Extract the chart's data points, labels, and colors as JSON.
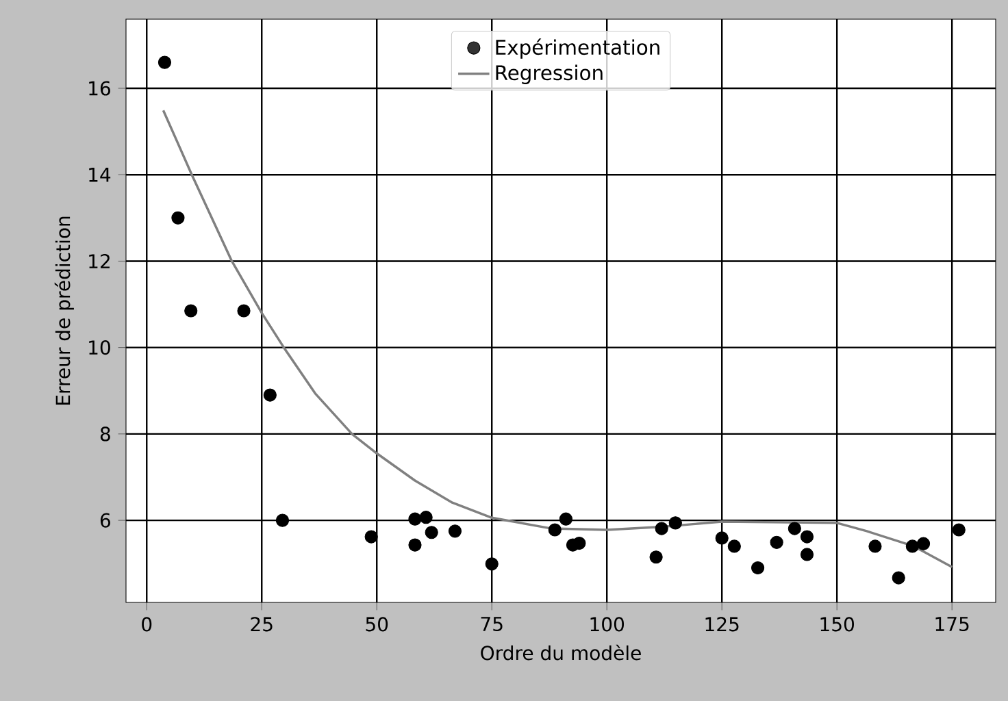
{
  "chart_data": {
    "type": "scatter",
    "xlabel": "Ordre du modèle",
    "ylabel": "Erreur de prédiction",
    "xlim": [
      -4.5,
      184.5
    ],
    "ylim": [
      4.1,
      17.6
    ],
    "xticks": [
      0,
      25,
      50,
      75,
      100,
      125,
      150,
      175
    ],
    "yticks": [
      6,
      8,
      10,
      12,
      14,
      16
    ],
    "grid": true,
    "legend": "top",
    "series": [
      {
        "name": "Expérimentation",
        "color": "#000000",
        "marker": "circle",
        "x": [
          3.9,
          6.8,
          9.6,
          21.1,
          26.8,
          29.5,
          48.8,
          58.3,
          60.7,
          58.3,
          61.9,
          67.0,
          75.0,
          88.7,
          91.1,
          92.6,
          94.0,
          110.7,
          111.9,
          114.9,
          125.0,
          127.7,
          132.8,
          136.9,
          140.8,
          143.5,
          143.5,
          158.3,
          163.4,
          166.4,
          168.8,
          176.5
        ],
        "values": [
          16.6,
          13.0,
          10.85,
          10.85,
          8.9,
          6.0,
          5.62,
          6.03,
          6.07,
          5.43,
          5.72,
          5.75,
          4.99,
          5.78,
          6.03,
          5.43,
          5.47,
          5.15,
          5.81,
          5.94,
          5.59,
          5.4,
          4.9,
          5.49,
          5.81,
          5.62,
          5.21,
          5.4,
          4.67,
          5.4,
          5.46,
          5.78
        ]
      },
      {
        "name": "Regression",
        "type": "line",
        "color": "#808080",
        "marker": "none",
        "line_style": "solid",
        "x": [
          3.6,
          9.8,
          18.5,
          25,
          29.8,
          36.6,
          44.6,
          50,
          58.3,
          66.4,
          75,
          88,
          100,
          112,
          125,
          150,
          156.5,
          166.7,
          175
        ],
        "values": [
          15.49,
          14.0,
          12.0,
          10.8,
          10.0,
          8.94,
          8.0,
          7.55,
          6.92,
          6.41,
          6.06,
          5.81,
          5.78,
          5.85,
          5.97,
          5.94,
          5.75,
          5.4,
          4.92
        ]
      }
    ]
  }
}
